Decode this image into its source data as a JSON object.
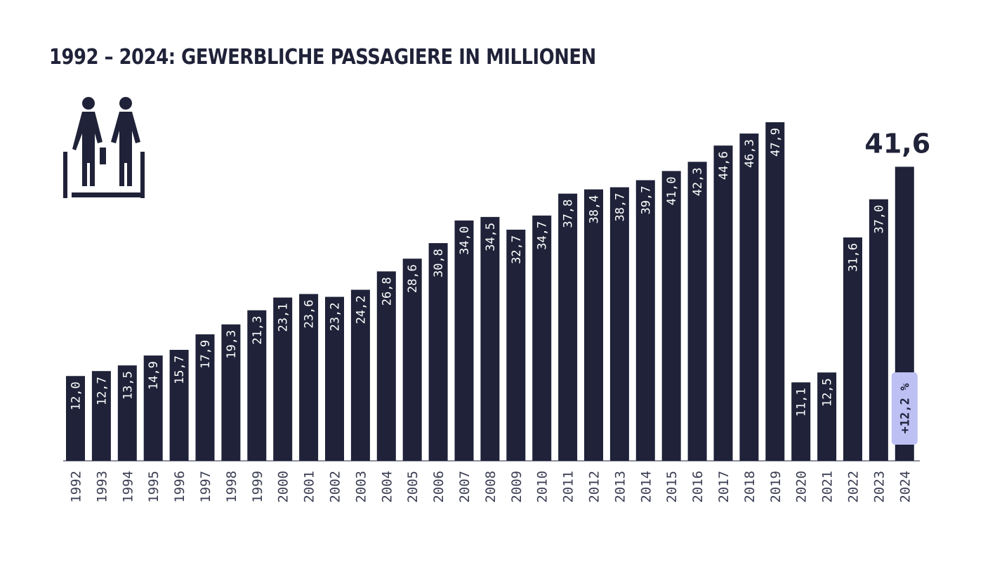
{
  "chart_data": {
    "type": "bar",
    "title": "1992 – 2024: GEWERBLICHE PASSAGIERE IN MILLIONEN",
    "xlabel": "",
    "ylabel": "",
    "ylim": [
      0,
      50
    ],
    "grid": false,
    "categories": [
      "1992",
      "1993",
      "1994",
      "1995",
      "1996",
      "1997",
      "1998",
      "1999",
      "2000",
      "2001",
      "2002",
      "2003",
      "2004",
      "2005",
      "2006",
      "2007",
      "2008",
      "2009",
      "2010",
      "2011",
      "2012",
      "2013",
      "2014",
      "2015",
      "2016",
      "2017",
      "2018",
      "2019",
      "2020",
      "2021",
      "2022",
      "2023",
      "2024"
    ],
    "values": [
      12.0,
      12.7,
      13.5,
      14.9,
      15.7,
      17.9,
      19.3,
      21.3,
      23.1,
      23.6,
      23.2,
      24.2,
      26.8,
      28.6,
      30.8,
      34.0,
      34.5,
      32.7,
      34.7,
      37.8,
      38.4,
      38.7,
      39.7,
      41.0,
      42.3,
      44.6,
      46.3,
      47.9,
      11.1,
      12.5,
      31.6,
      37.0,
      41.6
    ],
    "value_labels": [
      "12,0",
      "12,7",
      "13,5",
      "14,9",
      "15,7",
      "17,9",
      "19,3",
      "21,3",
      "23,1",
      "23,6",
      "23,2",
      "24,2",
      "26,8",
      "28,6",
      "30,8",
      "34,0",
      "34,5",
      "32,7",
      "34,7",
      "37,8",
      "38,4",
      "38,7",
      "39,7",
      "41,0",
      "42,3",
      "44,6",
      "46,3",
      "47,9",
      "11,1",
      "12,5",
      "31,6",
      "37,0",
      ""
    ],
    "annotations": {
      "headline_value": "41,6",
      "change_badge": "+12,2 %"
    },
    "colors": {
      "bar": "#1f2238",
      "badge_fill": "#bcc0f3",
      "axis": "#6b6e80"
    }
  },
  "icon": "passengers-escalator-icon"
}
